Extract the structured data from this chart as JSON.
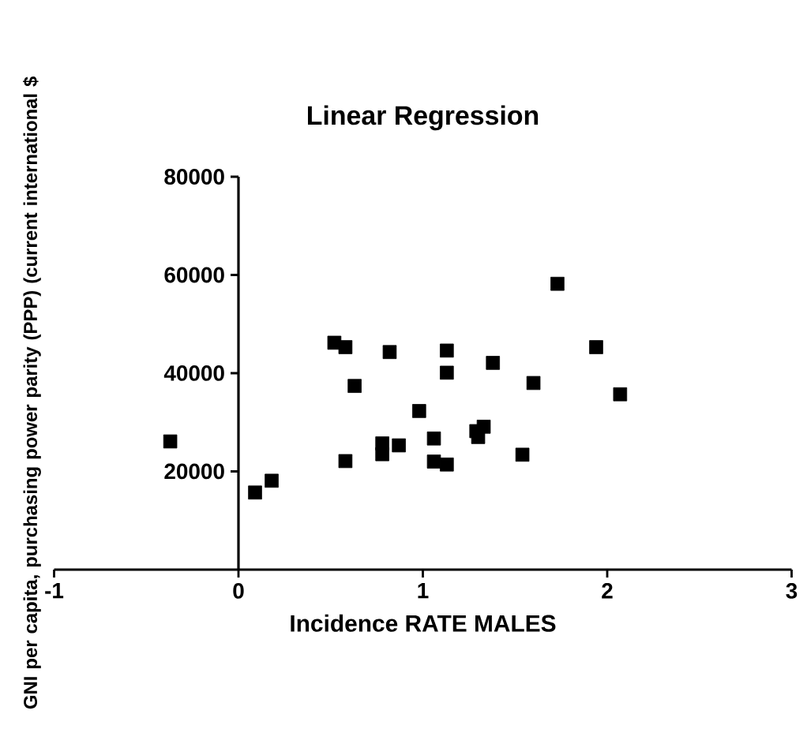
{
  "chart_data": {
    "type": "scatter",
    "title": "Linear Regression",
    "xlabel": "Incidence RATE MALES",
    "ylabel": "GNI per capita, purchasing power parity (PPP) (current international $",
    "x": [
      -0.37,
      0.09,
      0.18,
      0.52,
      0.58,
      0.58,
      0.63,
      0.82,
      0.78,
      0.78,
      0.87,
      0.98,
      1.06,
      1.06,
      1.13,
      1.13,
      1.13,
      1.29,
      1.33,
      1.3,
      1.38,
      1.54,
      1.6,
      1.73,
      1.94,
      2.07
    ],
    "values": [
      26100,
      15700,
      18100,
      46200,
      45300,
      22100,
      37400,
      44300,
      23500,
      25700,
      25300,
      32300,
      26700,
      22000,
      21400,
      44600,
      40100,
      28200,
      29100,
      27000,
      42100,
      23400,
      38000,
      58200,
      45300,
      35700
    ],
    "color": "#000000",
    "marker": "square",
    "xlim": [
      -1,
      3
    ],
    "ylim": [
      0,
      80000
    ],
    "xticks": [
      -1,
      0,
      1,
      2,
      3
    ],
    "yticks": [
      20000,
      40000,
      60000,
      80000
    ],
    "grid": false
  }
}
